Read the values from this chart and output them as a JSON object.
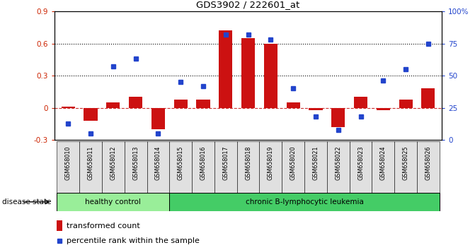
{
  "title": "GDS3902 / 222601_at",
  "samples": [
    "GSM658010",
    "GSM658011",
    "GSM658012",
    "GSM658013",
    "GSM658014",
    "GSM658015",
    "GSM658016",
    "GSM658017",
    "GSM658018",
    "GSM658019",
    "GSM658020",
    "GSM658021",
    "GSM658022",
    "GSM658023",
    "GSM658024",
    "GSM658025",
    "GSM658026"
  ],
  "transformed_count": [
    0.01,
    -0.12,
    0.05,
    0.1,
    -0.2,
    0.08,
    0.08,
    0.72,
    0.65,
    0.6,
    0.05,
    -0.02,
    -0.18,
    0.1,
    -0.02,
    0.08,
    0.18
  ],
  "percentile_rank": [
    0.13,
    0.05,
    0.57,
    0.63,
    0.05,
    0.45,
    0.42,
    0.82,
    0.82,
    0.78,
    0.4,
    0.18,
    0.08,
    0.18,
    0.46,
    0.55,
    0.75
  ],
  "bar_color": "#cc1111",
  "dot_color": "#2244cc",
  "healthy_count": 5,
  "group1_label": "healthy control",
  "group2_label": "chronic B-lymphocytic leukemia",
  "group1_color": "#99ee99",
  "group2_color": "#44cc66",
  "ylim_left": [
    -0.3,
    0.9
  ],
  "ylim_right": [
    0.0,
    1.0
  ],
  "yticks_left": [
    -0.3,
    0.0,
    0.3,
    0.6,
    0.9
  ],
  "yticks_right": [
    0.0,
    0.25,
    0.5,
    0.75,
    1.0
  ],
  "ytick_labels_right": [
    "0",
    "25",
    "50",
    "75",
    "100%"
  ],
  "ytick_labels_left": [
    "-0.3",
    "0",
    "0.3",
    "0.6",
    "0.9"
  ],
  "hline_y": [
    0.3,
    0.6
  ],
  "dashed_zero_color": "#cc3333",
  "left_label_color": "#cc2200",
  "right_label_color": "#2244cc",
  "disease_state_label": "disease state",
  "legend_bar_label": "transformed count",
  "legend_dot_label": "percentile rank within the sample"
}
